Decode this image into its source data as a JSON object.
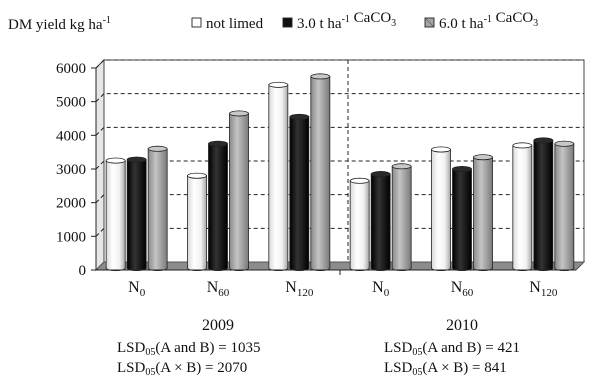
{
  "chart_data": {
    "type": "bar",
    "ylabel": {
      "text": "DM yield kg ha",
      "sup": "-1"
    },
    "ylim": [
      0,
      6000
    ],
    "yticks": [
      0,
      1000,
      2000,
      3000,
      4000,
      5000,
      6000
    ],
    "grid": true,
    "legend": {
      "placement": "top",
      "entries": [
        {
          "name": "not limed",
          "color": "#ffffff",
          "parts": [
            {
              "t": "not limed"
            }
          ]
        },
        {
          "name": "3.0 t ha-1 CaCO3",
          "color": "#111111",
          "parts": [
            {
              "t": "3.0 t ha"
            },
            {
              "sup": "-1"
            },
            {
              "t": " CaCO"
            },
            {
              "sub": "3"
            }
          ]
        },
        {
          "name": "6.0 t ha-1 CaCO3",
          "color": "#a6a6a6",
          "parts": [
            {
              "t": "6.0 t ha"
            },
            {
              "sup": "-1"
            },
            {
              "t": " CaCO"
            },
            {
              "sub": "3"
            }
          ]
        }
      ]
    },
    "groups": [
      {
        "year": "2009",
        "categories": [
          {
            "base": "N",
            "sub": "0"
          },
          {
            "base": "N",
            "sub": "60"
          },
          {
            "base": "N",
            "sub": "120"
          }
        ],
        "series": [
          {
            "name": "not limed",
            "values": [
              3250,
              2800,
              5500
            ]
          },
          {
            "name": "3.0 t ha-1 CaCO3",
            "values": [
              3280,
              3750,
              4550
            ]
          },
          {
            "name": "6.0 t ha-1 CaCO3",
            "values": [
              3600,
              4650,
              5750
            ]
          }
        ],
        "lsd": [
          {
            "label": "A and B",
            "value": "1035"
          },
          {
            "label": "A × B",
            "value": "2070"
          }
        ]
      },
      {
        "year": "2010",
        "categories": [
          {
            "base": "N",
            "sub": "0"
          },
          {
            "base": "N",
            "sub": "60"
          },
          {
            "base": "N",
            "sub": "120"
          }
        ],
        "series": [
          {
            "name": "not limed",
            "values": [
              2650,
              3580,
              3700
            ]
          },
          {
            "name": "3.0 t ha-1 CaCO3",
            "values": [
              2850,
              3000,
              3850
            ]
          },
          {
            "name": "6.0 t ha-1 CaCO3",
            "values": [
              3080,
              3350,
              3750
            ]
          }
        ],
        "lsd": [
          {
            "label": "A and B",
            "value": "421"
          },
          {
            "label": "A × B",
            "value": "841"
          }
        ]
      }
    ],
    "lsd_prefix": {
      "base": "LSD",
      "sub": "05"
    }
  }
}
